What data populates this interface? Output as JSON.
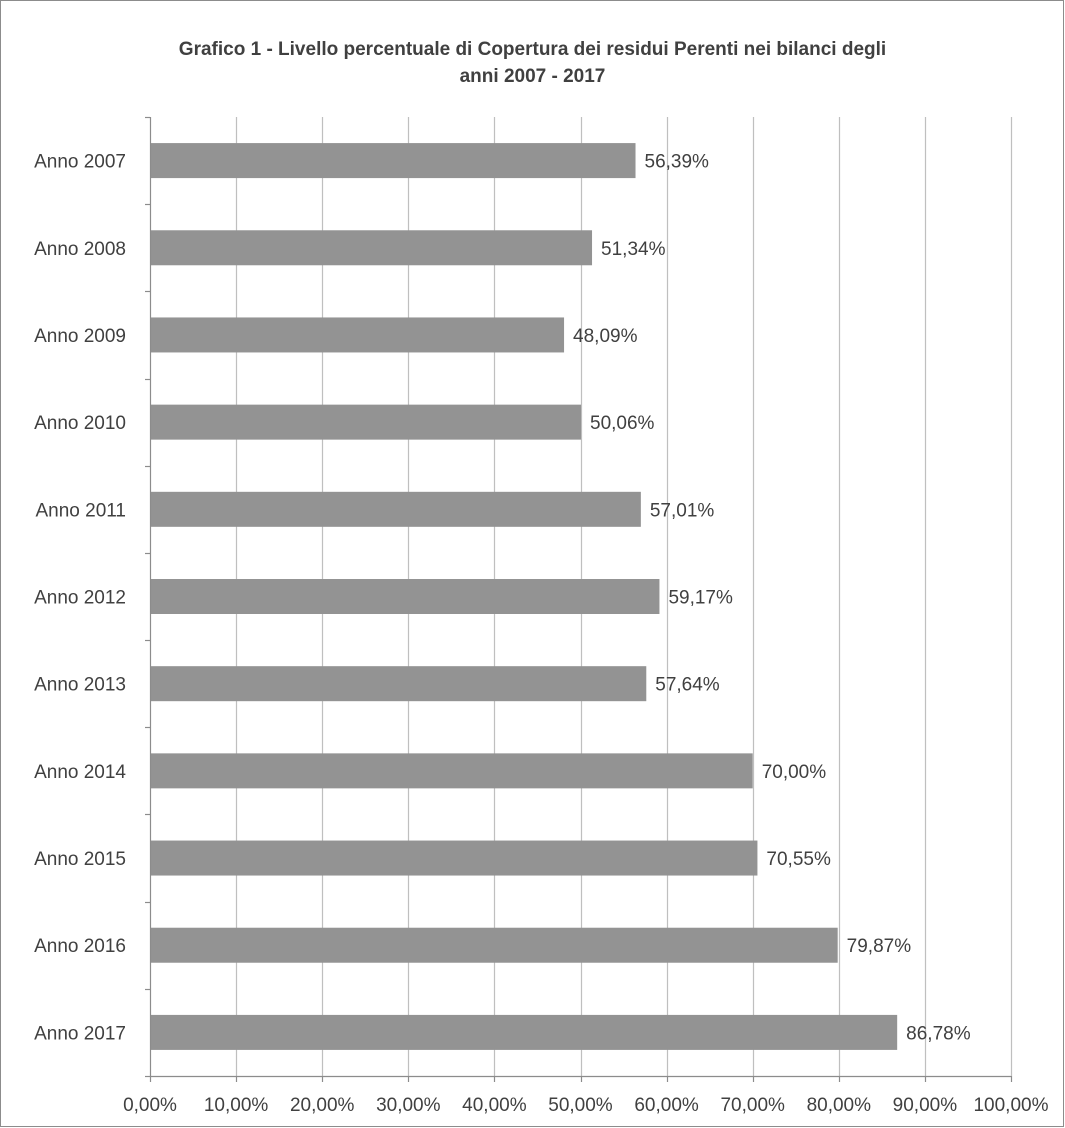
{
  "chart_data": {
    "type": "bar",
    "orientation": "horizontal",
    "title_line1": "Grafico 1 - Livello percentuale di Copertura dei residui Perenti nei bilanci degli",
    "title_line2": "anni 2007 - 2017",
    "categories": [
      "Anno 2007",
      "Anno 2008",
      "Anno 2009",
      "Anno 2010",
      "Anno 2011",
      "Anno 2012",
      "Anno 2013",
      "Anno 2014",
      "Anno 2015",
      "Anno 2016",
      "Anno 2017"
    ],
    "values": [
      56.39,
      51.34,
      48.09,
      50.06,
      57.01,
      59.17,
      57.64,
      70.0,
      70.55,
      79.87,
      86.78
    ],
    "data_labels": [
      "56,39%",
      "51,34%",
      "48,09%",
      "50,06%",
      "57,01%",
      "59,17%",
      "57,64%",
      "70,00%",
      "70,55%",
      "79,87%",
      "86,78%"
    ],
    "xlim": [
      0,
      100
    ],
    "xticks": [
      0,
      10,
      20,
      30,
      40,
      50,
      60,
      70,
      80,
      90,
      100
    ],
    "xtick_labels": [
      "0,00%",
      "10,00%",
      "20,00%",
      "30,00%",
      "40,00%",
      "50,00%",
      "60,00%",
      "70,00%",
      "80,00%",
      "90,00%",
      "100,00%"
    ],
    "xlabel": "",
    "ylabel": "",
    "grid": "vertical",
    "legend": "none",
    "bar_color": "#939393",
    "grid_color": "#bfbfbf",
    "axis_color": "#8c8c8c",
    "text_color": "#404040"
  }
}
